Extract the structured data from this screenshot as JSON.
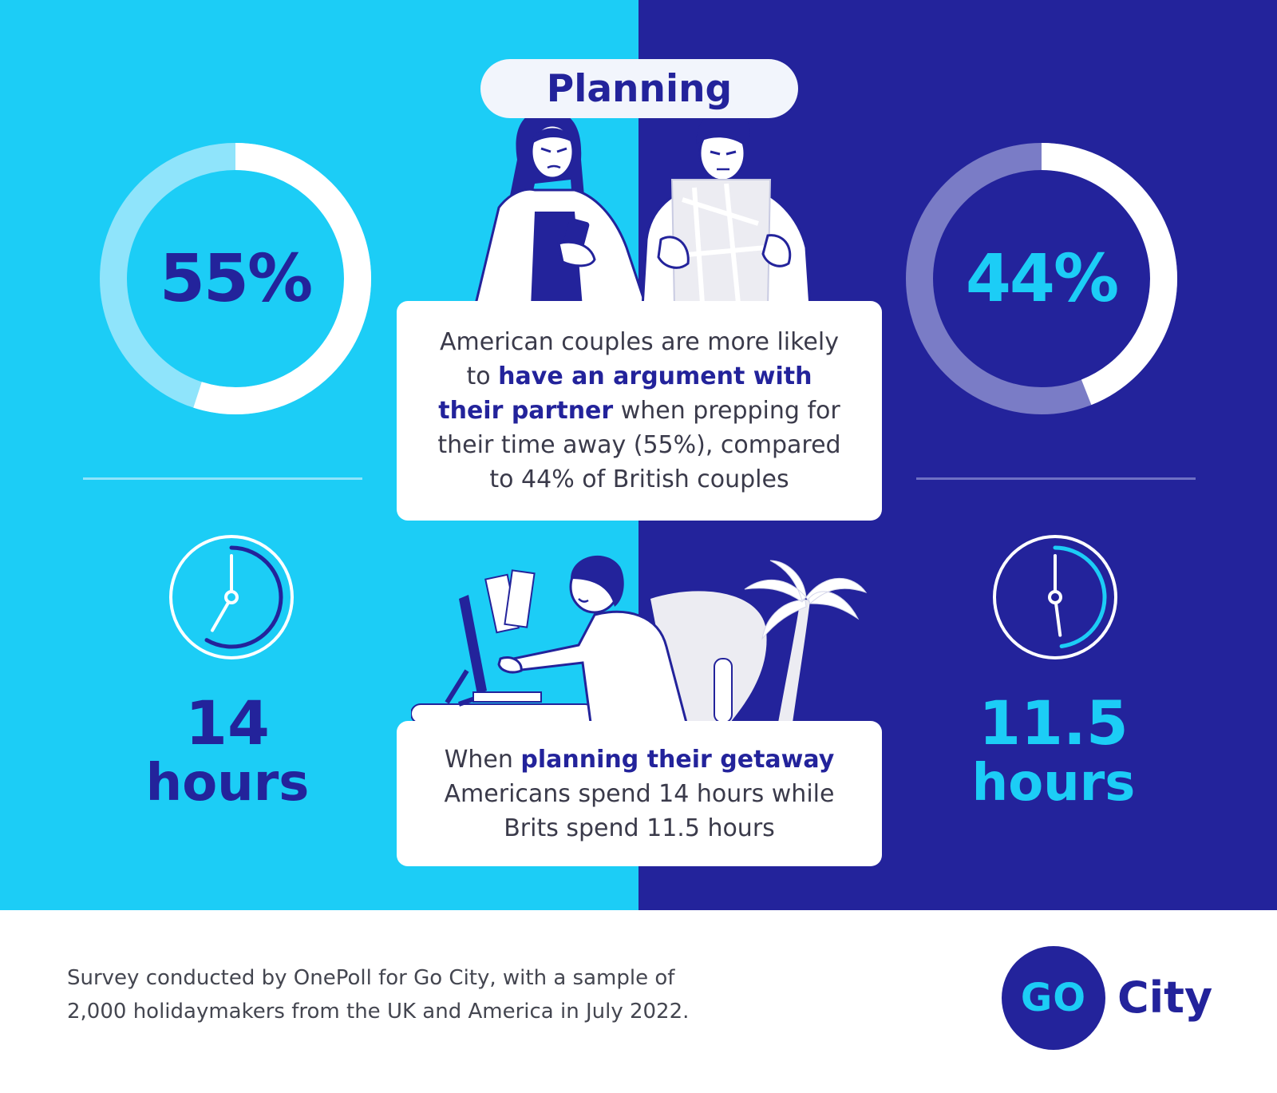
{
  "title": "Planning",
  "stats": {
    "us_argument": "55%",
    "uk_argument": "44%",
    "us_hours_num": "14",
    "us_hours_unit": "hours",
    "uk_hours_num": "11.5",
    "uk_hours_unit": "hours"
  },
  "card_argument": {
    "t1": "American couples are more likely to ",
    "b1": "have an argument with their partner",
    "t2": " when prepping for their time away (55%), compared to 44% of British couples"
  },
  "card_planning": {
    "t1": "When ",
    "b1": "planning their getaway",
    "t2": " Americans spend 14 hours while Brits spend 11.5 hours"
  },
  "footnote": {
    "line1": "Survey conducted by OnePoll for Go City, with a sample of",
    "line2": "2,000 holidaymakers from the UK and America in July 2022."
  },
  "logo": {
    "mark": "GO",
    "word": "City"
  },
  "colors": {
    "light_blue": "#1ccdf6",
    "navy": "#23239b",
    "white": "#ffffff",
    "pale_ring_left": "#8fe4fb",
    "pale_ring_right": "#7a7cc6"
  },
  "chart_data": [
    {
      "type": "pie",
      "categories": [
        "American couples",
        "British couples"
      ],
      "values": [
        55,
        44
      ],
      "units": "%",
      "ylim": [
        0,
        100
      ]
    },
    {
      "type": "bar",
      "categories": [
        "Americans",
        "Brits"
      ],
      "values": [
        14,
        11.5
      ],
      "units": "hours"
    }
  ]
}
